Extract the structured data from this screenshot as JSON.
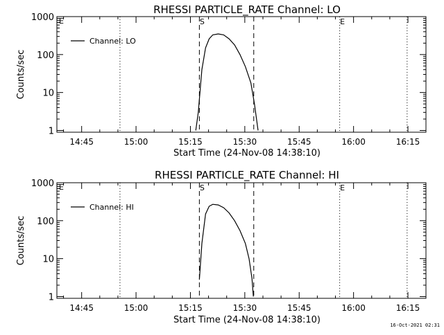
{
  "footer_timestamp": "16-Oct-2021 02:31",
  "chart_data": [
    {
      "type": "line",
      "title": "RHESSI PARTICLE_RATE Channel: LO",
      "xlabel": "Start Time (24-Nov-08 14:38:10)",
      "ylabel": "Counts/sec",
      "x_unit": "minutes after 14:38:10 (24-Nov-08)",
      "xlim": [
        0,
        101.8
      ],
      "ylim": [
        0.9,
        1000
      ],
      "yscale": "log",
      "x_ticks": [
        6.83,
        21.83,
        36.83,
        51.83,
        66.83,
        81.83,
        96.83
      ],
      "x_tick_labels": [
        "14:45",
        "15:00",
        "15:15",
        "15:30",
        "15:45",
        "16:00",
        "16:15"
      ],
      "y_ticks": [
        1,
        10,
        100,
        1000
      ],
      "y_tick_labels": [
        "1",
        "10",
        "100",
        "1000"
      ],
      "legend": {
        "position": "top-left",
        "entries": [
          "Channel: LO"
        ]
      },
      "series": [
        {
          "name": "Channel: LO",
          "x": [
            38.3,
            39.0,
            40.0,
            41.0,
            42.0,
            43.0,
            44.5,
            46.0,
            47.5,
            49.0,
            50.5,
            52.0,
            53.5,
            54.5,
            55.5
          ],
          "y": [
            1,
            3,
            40,
            150,
            260,
            330,
            350,
            330,
            260,
            180,
            100,
            48,
            18,
            5,
            1
          ]
        }
      ],
      "markers": [
        {
          "label": "",
          "x": 17.4,
          "style": "dotted"
        },
        {
          "label": "S",
          "x": 39.3,
          "style": "dashed"
        },
        {
          "label": "",
          "x": 54.3,
          "style": "dashed"
        },
        {
          "label": "E",
          "x": 78.0,
          "style": "dotted"
        },
        {
          "label": "",
          "x": 96.6,
          "style": "dotted"
        }
      ],
      "corner_label": "E"
    },
    {
      "type": "line",
      "title": "RHESSI PARTICLE_RATE Channel: HI",
      "xlabel": "Start Time (24-Nov-08 14:38:10)",
      "ylabel": "Counts/sec",
      "x_unit": "minutes after 14:38:10 (24-Nov-08)",
      "xlim": [
        0,
        101.8
      ],
      "ylim": [
        0.9,
        1000
      ],
      "yscale": "log",
      "x_ticks": [
        6.83,
        21.83,
        36.83,
        51.83,
        66.83,
        81.83,
        96.83
      ],
      "x_tick_labels": [
        "14:45",
        "15:00",
        "15:15",
        "15:30",
        "15:45",
        "16:00",
        "16:15"
      ],
      "y_ticks": [
        1,
        10,
        100,
        1000
      ],
      "y_tick_labels": [
        "1",
        "10",
        "100",
        "1000"
      ],
      "legend": {
        "position": "top-left",
        "entries": [
          "Channel: HI"
        ]
      },
      "series": [
        {
          "name": "Channel: HI",
          "x": [
            39.3,
            40.0,
            41.0,
            42.0,
            43.0,
            44.5,
            46.0,
            47.5,
            49.0,
            50.5,
            52.0,
            53.0,
            53.8,
            54.2
          ],
          "y": [
            2.8,
            25,
            150,
            240,
            270,
            260,
            220,
            160,
            100,
            55,
            25,
            10,
            3,
            1
          ]
        }
      ],
      "markers": [
        {
          "label": "",
          "x": 17.4,
          "style": "dotted"
        },
        {
          "label": "S",
          "x": 39.3,
          "style": "dashed"
        },
        {
          "label": "",
          "x": 54.3,
          "style": "dashed"
        },
        {
          "label": "E",
          "x": 78.0,
          "style": "dotted"
        },
        {
          "label": "",
          "x": 96.6,
          "style": "dotted"
        }
      ],
      "corner_label": "E"
    }
  ]
}
